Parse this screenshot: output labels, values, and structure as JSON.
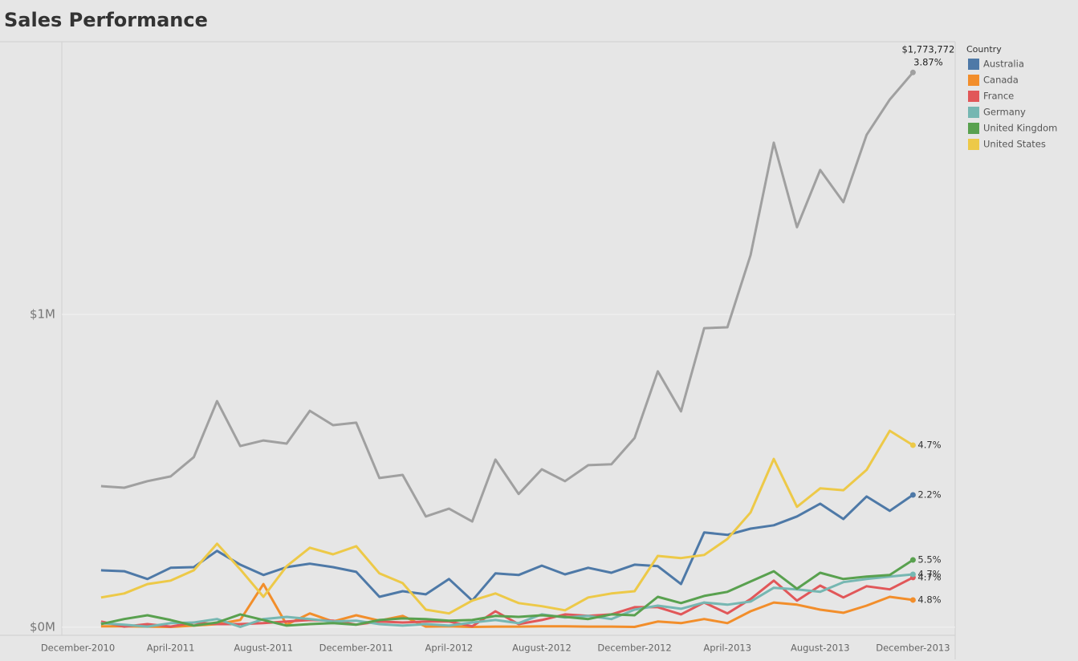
{
  "chart_data": {
    "type": "line",
    "title": "Sales Performance",
    "legend_title": "Country",
    "legend": "right",
    "grid": true,
    "categories": [
      "December-2010",
      null,
      null,
      null,
      "April-2011",
      null,
      null,
      null,
      "August-2011",
      null,
      null,
      null,
      "December-2011",
      null,
      null,
      null,
      "April-2012",
      null,
      null,
      null,
      "August-2012",
      null,
      null,
      null,
      "December-2012",
      null,
      null,
      null,
      "April-2013",
      null,
      null,
      null,
      "August-2013",
      null,
      null,
      null,
      "December-2013"
    ],
    "ylim": [
      -26000,
      1872000
    ],
    "yticks": [
      {
        "value": 0,
        "label": "$0M"
      },
      {
        "value": 1000000,
        "label": "$1M"
      }
    ],
    "series": [
      {
        "color": "#a0a0a0",
        "end_label": "3.87%",
        "values": [
          null,
          451000,
          446000,
          467000,
          482000,
          544000,
          723000,
          579000,
          597000,
          587000,
          692000,
          646000,
          654000,
          477000,
          487000,
          354000,
          379000,
          338000,
          536000,
          426000,
          505000,
          467000,
          518000,
          521000,
          605000,
          818000,
          690000,
          956000,
          959000,
          1190000,
          1549000,
          1279000,
          1462000,
          1359000,
          1574000,
          1687000,
          1773772
        ],
        "value_labels": [
          null,
          null,
          null,
          null,
          null,
          null,
          null,
          null,
          null,
          null,
          null,
          null,
          null,
          null,
          null,
          null,
          null,
          null,
          null,
          null,
          null,
          null,
          null,
          null,
          null,
          null,
          null,
          null,
          null,
          null,
          null,
          null,
          null,
          null,
          null,
          null,
          "$1,773,772"
        ]
      },
      {
        "name": "Australia",
        "color": "#4e79a7",
        "end_label": "2.2%",
        "values": [
          null,
          182000,
          179000,
          154000,
          190000,
          192000,
          244000,
          200000,
          167000,
          192000,
          203000,
          192000,
          177000,
          97000,
          115000,
          105000,
          154000,
          85000,
          172000,
          167000,
          197000,
          169000,
          190000,
          174000,
          200000,
          195000,
          138000,
          303000,
          295000,
          315000,
          326000,
          354000,
          395000,
          346000,
          418000,
          372000,
          423000
        ]
      },
      {
        "name": "Canada",
        "color": "#f28e2b",
        "end_label": "4.8%",
        "values": [
          null,
          3000,
          3000,
          2000,
          1000,
          5000,
          10000,
          23000,
          138000,
          8000,
          44000,
          18000,
          38000,
          21000,
          36000,
          2000,
          3000,
          1000,
          2000,
          2000,
          3000,
          3000,
          2000,
          2000,
          1000,
          18000,
          13000,
          26000,
          13000,
          51000,
          79000,
          72000,
          56000,
          46000,
          69000,
          97000,
          87000
        ]
      },
      {
        "name": "France",
        "color": "#e15759",
        "end_label": "4.7%",
        "values": [
          null,
          18000,
          2000,
          10000,
          2000,
          15000,
          10000,
          10000,
          13000,
          18000,
          23000,
          21000,
          8000,
          18000,
          15000,
          18000,
          18000,
          3000,
          51000,
          10000,
          23000,
          41000,
          36000,
          41000,
          64000,
          64000,
          41000,
          79000,
          44000,
          90000,
          149000,
          85000,
          133000,
          95000,
          131000,
          121000,
          159000
        ]
      },
      {
        "name": "Germany",
        "color": "#76b7b2",
        "end_label": "4.7%",
        "values": [
          null,
          13000,
          8000,
          2000,
          13000,
          15000,
          26000,
          1000,
          26000,
          33000,
          26000,
          18000,
          21000,
          10000,
          5000,
          10000,
          5000,
          15000,
          23000,
          13000,
          41000,
          31000,
          36000,
          26000,
          56000,
          69000,
          59000,
          79000,
          72000,
          82000,
          126000,
          121000,
          113000,
          144000,
          154000,
          162000,
          169000
        ]
      },
      {
        "name": "United Kingdom",
        "color": "#59a14f",
        "end_label": "5.5%",
        "values": [
          null,
          10000,
          26000,
          38000,
          23000,
          5000,
          15000,
          41000,
          23000,
          5000,
          10000,
          13000,
          8000,
          23000,
          28000,
          26000,
          21000,
          23000,
          36000,
          33000,
          38000,
          33000,
          26000,
          41000,
          38000,
          97000,
          77000,
          100000,
          113000,
          146000,
          179000,
          123000,
          174000,
          154000,
          162000,
          167000,
          215000
        ]
      },
      {
        "name": "United States",
        "color": "#edc948",
        "end_label": "4.7%",
        "values": [
          null,
          95000,
          108000,
          138000,
          149000,
          182000,
          267000,
          185000,
          97000,
          195000,
          254000,
          233000,
          259000,
          172000,
          141000,
          56000,
          44000,
          85000,
          108000,
          77000,
          67000,
          54000,
          95000,
          108000,
          115000,
          228000,
          221000,
          231000,
          282000,
          367000,
          538000,
          385000,
          444000,
          438000,
          503000,
          628000,
          582000
        ]
      }
    ]
  }
}
